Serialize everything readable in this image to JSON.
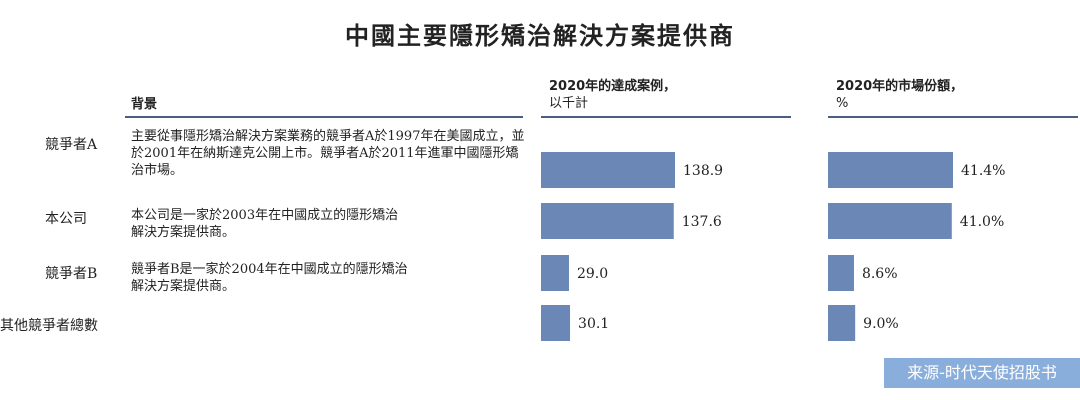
{
  "title": "中國主要隱形矯治解決方案提供商",
  "headers": {
    "background": "背景",
    "cases_line1": "2020年的達成案例，",
    "cases_line2": "以千計",
    "share_line1": "2020年的市場份額，",
    "share_line2": "%"
  },
  "rows": [
    {
      "name": "競爭者A",
      "description": "主要從事隱形矯治解決方案業務的競爭者A於1997年在美國成立，並於2001年在納斯達克公開上市。競爭者A於2011年進軍中國隱形矯治市場。"
    },
    {
      "name": "本公司",
      "description": "本公司是一家於2003年在中國成立的隱形矯治解決方案提供商。"
    },
    {
      "name": "競爭者B",
      "description": "競爭者B是一家於2004年在中國成立的隱形矯治解決方案提供商。"
    },
    {
      "name": "其他競爭者總數",
      "description": ""
    }
  ],
  "source": "来源-时代天使招股书",
  "colors": {
    "bar": "#6b87b5",
    "rule": "#4a5f80",
    "source_bg": "#8aaedb"
  },
  "chart_data": [
    {
      "type": "bar",
      "orientation": "horizontal",
      "categories": [
        "競爭者A",
        "本公司",
        "競爭者B",
        "其他競爭者總數"
      ],
      "values": [
        138.9,
        137.6,
        29.0,
        30.1
      ],
      "labels": [
        "138.9",
        "137.6",
        "29.0",
        "30.1"
      ],
      "title": "2020年的達成案例，以千計"
    },
    {
      "type": "bar",
      "orientation": "horizontal",
      "categories": [
        "競爭者A",
        "本公司",
        "競爭者B",
        "其他競爭者總數"
      ],
      "values": [
        41.4,
        41.0,
        8.6,
        9.0
      ],
      "labels": [
        "41.4%",
        "41.0%",
        "8.6%",
        "9.0%"
      ],
      "title": "2020年的市場份額，%"
    }
  ]
}
